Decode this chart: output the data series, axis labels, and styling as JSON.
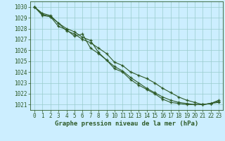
{
  "title": "Graphe pression niveau de la mer (hPa)",
  "background_color": "#cceeff",
  "plot_bg_color": "#cceeff",
  "grid_color": "#99cccc",
  "line_color": "#2d5a27",
  "x": [
    0,
    1,
    2,
    3,
    4,
    5,
    6,
    7,
    8,
    9,
    10,
    11,
    12,
    13,
    14,
    15,
    16,
    17,
    18,
    19,
    20,
    21,
    22,
    23
  ],
  "line1": [
    1030.0,
    1029.4,
    1029.2,
    1028.5,
    1027.8,
    1027.5,
    1027.0,
    1026.7,
    1026.2,
    1025.7,
    1024.9,
    1024.6,
    1024.0,
    1023.7,
    1023.4,
    1023.0,
    1022.5,
    1022.1,
    1021.7,
    1021.4,
    1021.2,
    1021.0,
    1021.1,
    1021.4
  ],
  "line2": [
    1030.0,
    1029.3,
    1029.1,
    1028.5,
    1028.0,
    1027.7,
    1027.2,
    1026.9,
    1025.8,
    1025.1,
    1024.5,
    1024.1,
    1023.5,
    1023.0,
    1022.5,
    1022.1,
    1021.7,
    1021.4,
    1021.2,
    1021.1,
    1021.0,
    1021.0,
    1021.1,
    1021.3
  ],
  "line3": [
    1030.0,
    1029.2,
    1029.1,
    1028.2,
    1027.9,
    1027.3,
    1027.5,
    1026.2,
    1025.7,
    1025.1,
    1024.3,
    1024.0,
    1023.3,
    1022.8,
    1022.4,
    1022.0,
    1021.5,
    1021.2,
    1021.1,
    1021.0,
    1021.0,
    1021.0,
    1021.1,
    1021.2
  ],
  "ylim": [
    1020.5,
    1030.5
  ],
  "xlim": [
    -0.5,
    23.5
  ],
  "yticks": [
    1021,
    1022,
    1023,
    1024,
    1025,
    1026,
    1027,
    1028,
    1029,
    1030
  ],
  "xticks": [
    0,
    1,
    2,
    3,
    4,
    5,
    6,
    7,
    8,
    9,
    10,
    11,
    12,
    13,
    14,
    15,
    16,
    17,
    18,
    19,
    20,
    21,
    22,
    23
  ],
  "tick_fontsize": 5.5,
  "label_fontsize": 6.5
}
